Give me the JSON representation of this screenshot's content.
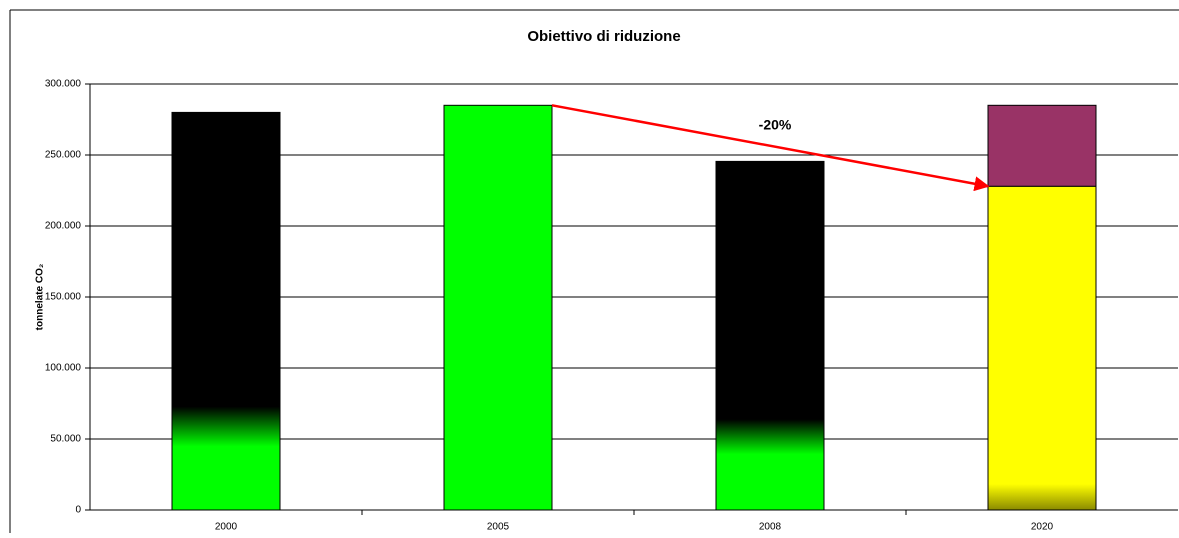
{
  "chart_data": {
    "type": "bar",
    "title": "Obiettivo di riduzione",
    "ylabel": "tonnelate CO₂",
    "categories": [
      "2000",
      "2005",
      "2008",
      "2020"
    ],
    "series": [
      {
        "values": [
          280000,
          285000,
          245500,
          228000
        ],
        "colors": [
          "#000000",
          "#00ff00",
          "#000000",
          "#ffff00"
        ]
      },
      {
        "values": [
          null,
          null,
          null,
          57000
        ],
        "color": "#993366"
      }
    ],
    "gradient_color": "#00ff00",
    "ylim": [
      0,
      300000
    ],
    "yticks": [
      0,
      {
        "value": 50000,
        "label": "50.000"
      },
      {
        "value": 100000,
        "label": "100.000"
      },
      {
        "value": 150000,
        "label": "150.000"
      },
      {
        "value": 200000,
        "label": "200.000"
      },
      {
        "value": 250000,
        "label": "250.000"
      },
      {
        "value": 300000,
        "label": "300.000"
      }
    ],
    "grid": true,
    "stacked": true,
    "annotation": "-20%",
    "arrow_color": "#ff0000"
  }
}
